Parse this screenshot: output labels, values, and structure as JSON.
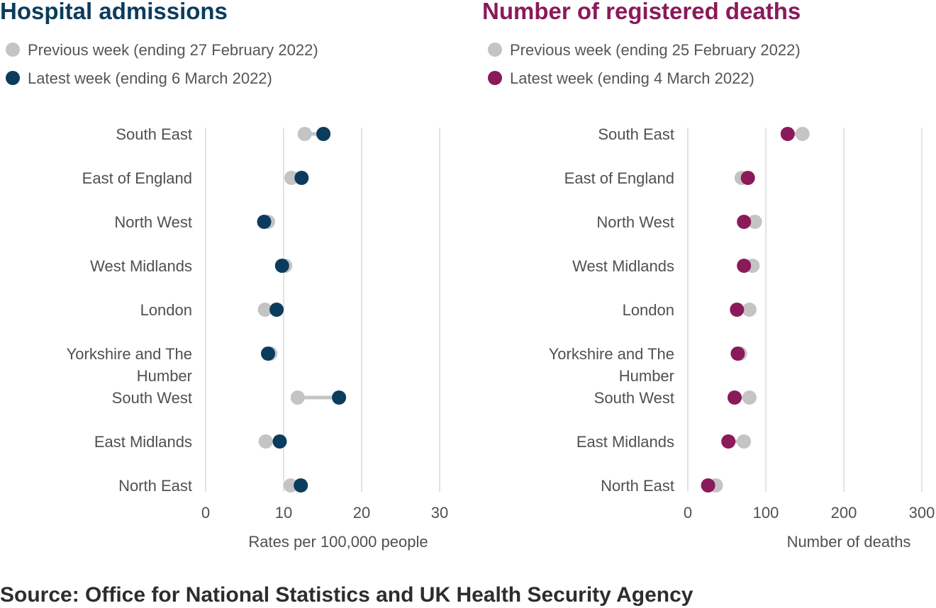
{
  "source": "Source: Office for National Statistics and UK Health Security Agency",
  "chart_data": [
    {
      "type": "dumbbell",
      "title": "Hospital admissions",
      "xlabel": "Rates per 100,000 people",
      "xlim": [
        0,
        30
      ],
      "xticks": [
        0,
        10,
        20,
        30
      ],
      "grid": true,
      "legend_placement": "top-left",
      "colors": {
        "title": "#0b3c5d",
        "previous": "#c4c4c4",
        "latest": "#0b3c5d",
        "connector": "#c4c4c4"
      },
      "categories": [
        "South East",
        "East of England",
        "North West",
        "West Midlands",
        "London",
        "Yorkshire and The Humber",
        "South West",
        "East Midlands",
        "North East"
      ],
      "series": [
        {
          "name": "Previous week (ending 27 February 2022)",
          "values": [
            12.7,
            11.0,
            8.0,
            10.2,
            7.6,
            8.3,
            11.8,
            7.7,
            10.9
          ]
        },
        {
          "name": "Latest week (ending 6 March 2022)",
          "values": [
            15.1,
            12.3,
            7.5,
            9.8,
            9.1,
            8.0,
            17.1,
            9.5,
            12.2
          ]
        }
      ]
    },
    {
      "type": "dumbbell",
      "title": "Number of registered deaths",
      "xlabel": "Number of deaths",
      "xlim": [
        0,
        300
      ],
      "xticks": [
        0,
        100,
        200,
        300
      ],
      "grid": true,
      "legend_placement": "top-left",
      "colors": {
        "title": "#8a1a5a",
        "previous": "#c4c4c4",
        "latest": "#8a1a5a",
        "connector": "#c4c4c4"
      },
      "categories": [
        "South East",
        "East of England",
        "North West",
        "West Midlands",
        "London",
        "Yorkshire and The Humber",
        "South West",
        "East Midlands",
        "North East"
      ],
      "series": [
        {
          "name": "Previous week (ending 25 February 2022)",
          "values": [
            147,
            69,
            86,
            83,
            79,
            67,
            79,
            72,
            36
          ]
        },
        {
          "name": "Latest week (ending 4 March 2022)",
          "values": [
            128,
            77,
            72,
            72,
            63,
            64,
            60,
            52,
            26
          ]
        }
      ]
    }
  ]
}
